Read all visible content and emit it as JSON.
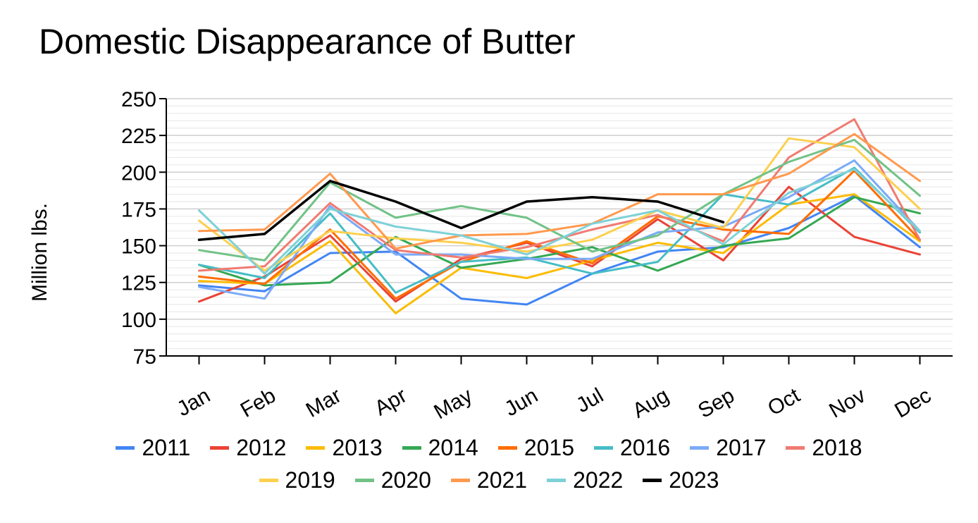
{
  "chart_data": {
    "type": "line",
    "title": "Domestic Disappearance of Butter",
    "xlabel": "",
    "ylabel": "Million lbs.",
    "ylim": [
      75,
      250
    ],
    "yticks": [
      75,
      100,
      125,
      150,
      175,
      200,
      225,
      250
    ],
    "grid": true,
    "legend_position": "bottom",
    "categories": [
      "Jan",
      "Feb",
      "Mar",
      "Apr",
      "May",
      "Jun",
      "Jul",
      "Aug",
      "Sep",
      "Oct",
      "Nov",
      "Dec"
    ],
    "series": [
      {
        "name": "2011",
        "color": "#4285F4",
        "values": [
          123,
          119,
          145,
          146,
          114,
          110,
          131,
          146,
          149,
          162,
          184,
          149
        ]
      },
      {
        "name": "2012",
        "color": "#EA4335",
        "values": [
          112,
          129,
          157,
          112,
          141,
          152,
          136,
          168,
          140,
          190,
          156,
          144
        ]
      },
      {
        "name": "2013",
        "color": "#FBBC04",
        "values": [
          126,
          124,
          153,
          104,
          135,
          128,
          140,
          152,
          145,
          178,
          185,
          153
        ]
      },
      {
        "name": "2014",
        "color": "#34A853",
        "values": [
          137,
          123,
          125,
          156,
          135,
          141,
          149,
          133,
          150,
          155,
          183,
          172
        ]
      },
      {
        "name": "2015",
        "color": "#FF6D01",
        "values": [
          129,
          124,
          161,
          114,
          139,
          153,
          138,
          170,
          161,
          158,
          201,
          154
        ]
      },
      {
        "name": "2016",
        "color": "#46BDC6",
        "values": [
          137,
          128,
          172,
          118,
          139,
          142,
          131,
          139,
          185,
          178,
          203,
          159
        ]
      },
      {
        "name": "2017",
        "color": "#7BAAF7",
        "values": [
          122,
          114,
          177,
          144,
          144,
          141,
          141,
          159,
          163,
          183,
          208,
          160
        ]
      },
      {
        "name": "2018",
        "color": "#F07B72",
        "values": [
          133,
          136,
          179,
          147,
          142,
          149,
          161,
          171,
          153,
          210,
          236,
          154
        ]
      },
      {
        "name": "2019",
        "color": "#FCD04F",
        "values": [
          167,
          133,
          160,
          155,
          152,
          146,
          154,
          174,
          162,
          223,
          217,
          175
        ]
      },
      {
        "name": "2020",
        "color": "#71C287",
        "values": [
          147,
          140,
          193,
          169,
          177,
          169,
          146,
          157,
          185,
          207,
          222,
          184
        ]
      },
      {
        "name": "2021",
        "color": "#FF994D",
        "values": [
          160,
          161,
          199,
          148,
          157,
          158,
          165,
          185,
          185,
          199,
          226,
          194
        ]
      },
      {
        "name": "2022",
        "color": "#7ED1D7",
        "values": [
          174,
          131,
          175,
          163,
          157,
          144,
          165,
          174,
          151,
          186,
          202,
          160
        ]
      },
      {
        "name": "2023",
        "color": "#000000",
        "values": [
          154,
          158,
          194,
          180,
          162,
          180,
          183,
          180,
          166,
          null,
          null,
          null
        ]
      }
    ]
  },
  "legend": {
    "rows": [
      [
        "2011",
        "2012",
        "2013",
        "2014",
        "2015",
        "2016",
        "2017",
        "2018"
      ],
      [
        "2019",
        "2020",
        "2021",
        "2022",
        "2023"
      ]
    ]
  }
}
